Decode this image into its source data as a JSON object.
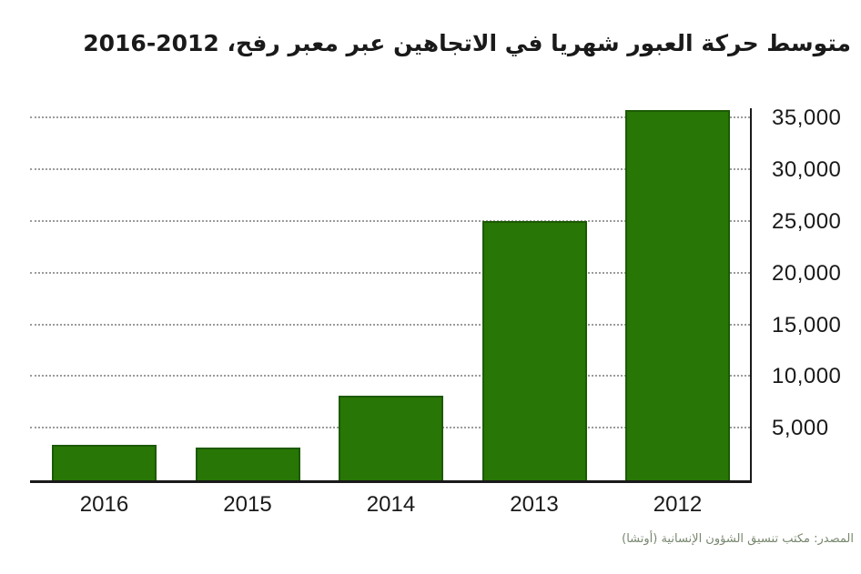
{
  "title": "متوسط حركة العبور شهريا في الاتجاهين عبر معبر رفح، 2012-2016",
  "source_note": "المصدر: مكتب تنسيق الشؤون الإنسانية (أوتشا)",
  "colors": {
    "background": "#ffffff",
    "bar_fill": "#287605",
    "bar_border": "#1c5a03",
    "gridline": "#9b9b9b",
    "axis": "#1a1a1a",
    "text": "#1a1a1a",
    "source_text": "#78876f"
  },
  "chart_data": {
    "type": "bar",
    "title": "متوسط حركة العبور شهريا في الاتجاهين عبر معبر رفح، 2012-2016",
    "title_translation": "Average monthly two-way crossing traffic through the Rafah Crossing, 2012-2016",
    "categories": [
      "2016",
      "2015",
      "2014",
      "2013",
      "2012"
    ],
    "values": [
      3400,
      3200,
      8200,
      25100,
      35800
    ],
    "xlabel": "",
    "ylabel": "",
    "ylim": [
      0,
      36000
    ],
    "yticks": [
      5000,
      10000,
      15000,
      20000,
      25000,
      30000,
      35000
    ],
    "ytick_labels": [
      "5,000",
      "10,000",
      "15,000",
      "20,000",
      "25,000",
      "30,000",
      "35,000"
    ],
    "y_axis_side": "right",
    "grid": "horizontal-dotted",
    "legend": "none",
    "bar_color": "#287605",
    "source": "المصدر: مكتب تنسيق الشؤون الإنسانية (أوتشا)"
  }
}
